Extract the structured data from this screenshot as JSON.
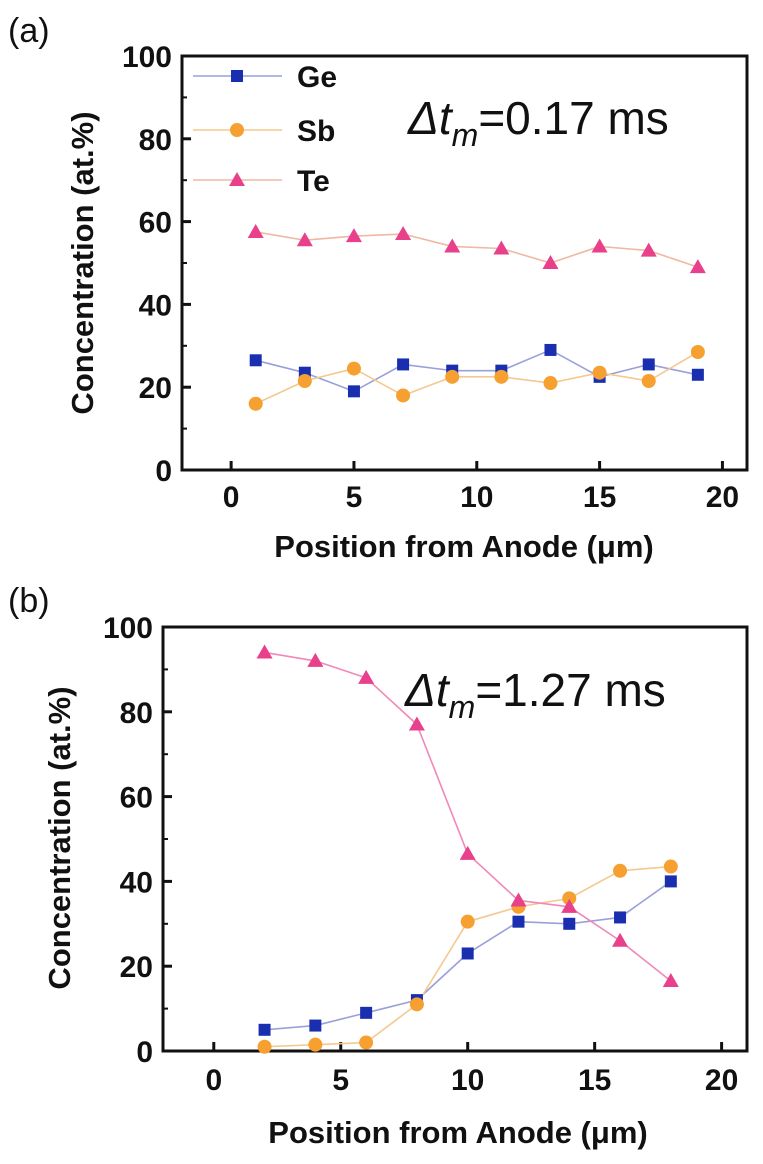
{
  "chart_data": [
    {
      "panel": "(a)",
      "type": "line",
      "annotation_delta": "Δt",
      "annotation_sub": "m",
      "annotation_value": "=0.17 ms",
      "xlabel": "Position from Anode (μm)",
      "ylabel": "Concentration (at.%)",
      "xlim": [
        -2,
        21
      ],
      "ylim": [
        0,
        100
      ],
      "xticks": [
        0,
        5,
        10,
        15,
        20
      ],
      "yticks": [
        0,
        20,
        40,
        60,
        80,
        100
      ],
      "legend_position": "top-left",
      "x": [
        1,
        3,
        5,
        7,
        9,
        11,
        13,
        15,
        17,
        19
      ],
      "series": [
        {
          "name": "Ge",
          "marker": "square",
          "color": "#1a2fb0",
          "line_color": "#9aa0d8",
          "values": [
            26.5,
            23.5,
            19,
            25.5,
            24,
            24,
            29,
            22.5,
            25.5,
            23
          ]
        },
        {
          "name": "Sb",
          "marker": "circle",
          "color": "#f5a030",
          "line_color": "#f5c890",
          "values": [
            16,
            21.5,
            24.5,
            18,
            22.5,
            22.5,
            21,
            23.5,
            21.5,
            28.5
          ]
        },
        {
          "name": "Te",
          "marker": "triangle",
          "color": "#e8408a",
          "line_color": "#f0b8a0",
          "values": [
            57.5,
            55.5,
            56.5,
            57,
            54,
            53.5,
            50,
            54,
            53,
            49
          ]
        }
      ]
    },
    {
      "panel": "(b)",
      "type": "line",
      "annotation_delta": "Δt",
      "annotation_sub": "m",
      "annotation_value": "=1.27 ms",
      "xlabel": "Position from Anode (μm)",
      "ylabel": "Concentration (at.%)",
      "xlim": [
        -2,
        21
      ],
      "ylim": [
        0,
        100
      ],
      "xticks": [
        0,
        5,
        10,
        15,
        20
      ],
      "yticks": [
        0,
        20,
        40,
        60,
        80,
        100
      ],
      "x": [
        2,
        4,
        6,
        8,
        10,
        12,
        14,
        16,
        18
      ],
      "series": [
        {
          "name": "Ge",
          "marker": "square",
          "color": "#1a2fb0",
          "line_color": "#9aa0d8",
          "values": [
            5,
            6,
            9,
            12,
            23,
            30.5,
            30,
            31.5,
            40
          ]
        },
        {
          "name": "Sb",
          "marker": "circle",
          "color": "#f5a030",
          "line_color": "#f5c890",
          "values": [
            1,
            1.5,
            2,
            11,
            30.5,
            34,
            36,
            42.5,
            43.5
          ]
        },
        {
          "name": "Te",
          "marker": "triangle",
          "color": "#e8408a",
          "line_color": "#f088b8",
          "values": [
            94,
            92,
            88,
            77,
            46.5,
            35.5,
            34,
            26,
            16.5
          ]
        }
      ]
    }
  ]
}
